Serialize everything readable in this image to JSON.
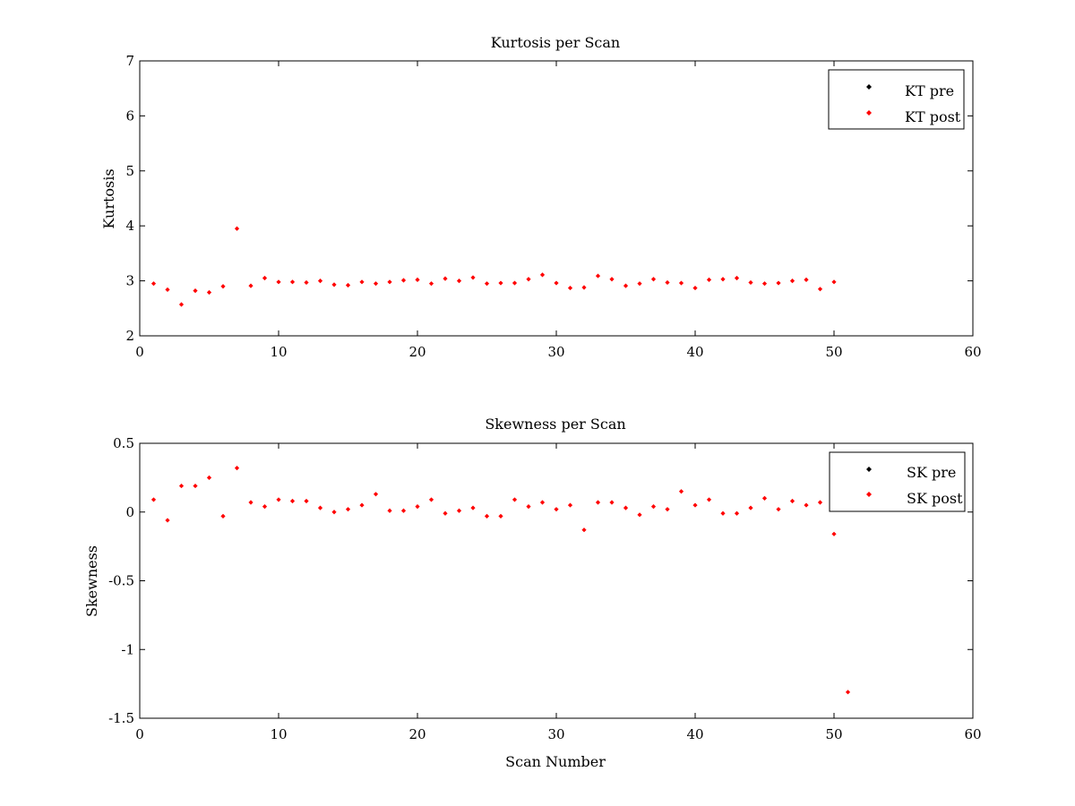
{
  "chart_data": [
    {
      "type": "scatter",
      "title": "Kurtosis per Scan",
      "xlabel": "",
      "ylabel": "Kurtosis",
      "xlim": [
        0,
        60
      ],
      "ylim": [
        2,
        7
      ],
      "xticks": [
        0,
        10,
        20,
        30,
        40,
        50,
        60
      ],
      "yticks": [
        2,
        3,
        4,
        5,
        6,
        7
      ],
      "xtick_labels": [
        "0",
        "10",
        "20",
        "30",
        "40",
        "50",
        "60"
      ],
      "ytick_labels": [
        "2",
        "3",
        "4",
        "5",
        "6",
        "7"
      ],
      "grid": false,
      "legend_position": "top-right",
      "series": [
        {
          "name": "KT pre",
          "color": "#000000",
          "marker": "diamond",
          "x": [],
          "y": []
        },
        {
          "name": "KT post",
          "color": "#ff0000",
          "marker": "diamond",
          "x": [
            1,
            2,
            3,
            4,
            5,
            6,
            7,
            8,
            9,
            10,
            11,
            12,
            13,
            14,
            15,
            16,
            17,
            18,
            19,
            20,
            21,
            22,
            23,
            24,
            25,
            26,
            27,
            28,
            29,
            30,
            31,
            32,
            33,
            34,
            35,
            36,
            37,
            38,
            39,
            40,
            41,
            42,
            43,
            44,
            45,
            46,
            47,
            48,
            49,
            50
          ],
          "y": [
            2.95,
            2.84,
            2.57,
            2.82,
            2.79,
            2.9,
            3.95,
            2.91,
            3.05,
            2.98,
            2.98,
            2.97,
            3.0,
            2.93,
            2.92,
            2.98,
            2.95,
            2.98,
            3.01,
            3.02,
            2.95,
            3.04,
            3.0,
            3.06,
            2.95,
            2.96,
            2.96,
            3.03,
            3.11,
            2.96,
            2.87,
            2.88,
            3.09,
            3.03,
            2.91,
            2.95,
            3.03,
            2.97,
            2.96,
            2.87,
            3.02,
            3.03,
            3.05,
            2.97,
            2.95,
            2.96,
            3.0,
            3.02,
            2.85,
            2.98
          ]
        }
      ]
    },
    {
      "type": "scatter",
      "title": "Skewness per Scan",
      "xlabel": "Scan Number",
      "ylabel": "Skewness",
      "xlim": [
        0,
        60
      ],
      "ylim": [
        -1.5,
        0.5
      ],
      "xticks": [
        0,
        10,
        20,
        30,
        40,
        50,
        60
      ],
      "yticks": [
        -1.5,
        -1,
        -0.5,
        0,
        0.5
      ],
      "xtick_labels": [
        "0",
        "10",
        "20",
        "30",
        "40",
        "50",
        "60"
      ],
      "ytick_labels": [
        "-1.5",
        "-1",
        "-0.5",
        "0",
        "0.5"
      ],
      "grid": false,
      "legend_position": "top-right",
      "series": [
        {
          "name": "SK pre",
          "color": "#000000",
          "marker": "diamond",
          "x": [],
          "y": []
        },
        {
          "name": "SK post",
          "color": "#ff0000",
          "marker": "diamond",
          "x": [
            1,
            2,
            3,
            4,
            5,
            6,
            7,
            8,
            9,
            10,
            11,
            12,
            13,
            14,
            15,
            16,
            17,
            18,
            19,
            20,
            21,
            22,
            23,
            24,
            25,
            26,
            27,
            28,
            29,
            30,
            31,
            32,
            33,
            34,
            35,
            36,
            37,
            38,
            39,
            40,
            41,
            42,
            43,
            44,
            45,
            46,
            47,
            48,
            49,
            50,
            51
          ],
          "y": [
            0.09,
            -0.06,
            0.19,
            0.19,
            0.25,
            -0.03,
            0.32,
            0.07,
            0.04,
            0.09,
            0.08,
            0.08,
            0.03,
            0.0,
            0.02,
            0.05,
            0.13,
            0.01,
            0.01,
            0.04,
            0.09,
            -0.01,
            0.01,
            0.03,
            -0.03,
            -0.03,
            0.09,
            0.04,
            0.07,
            0.02,
            0.05,
            -0.13,
            0.07,
            0.07,
            0.03,
            -0.02,
            0.04,
            0.02,
            0.15,
            0.05,
            0.09,
            -0.01,
            -0.01,
            0.03,
            0.1,
            0.02,
            0.08,
            0.05,
            0.07,
            -0.16,
            -1.31
          ]
        }
      ]
    }
  ]
}
